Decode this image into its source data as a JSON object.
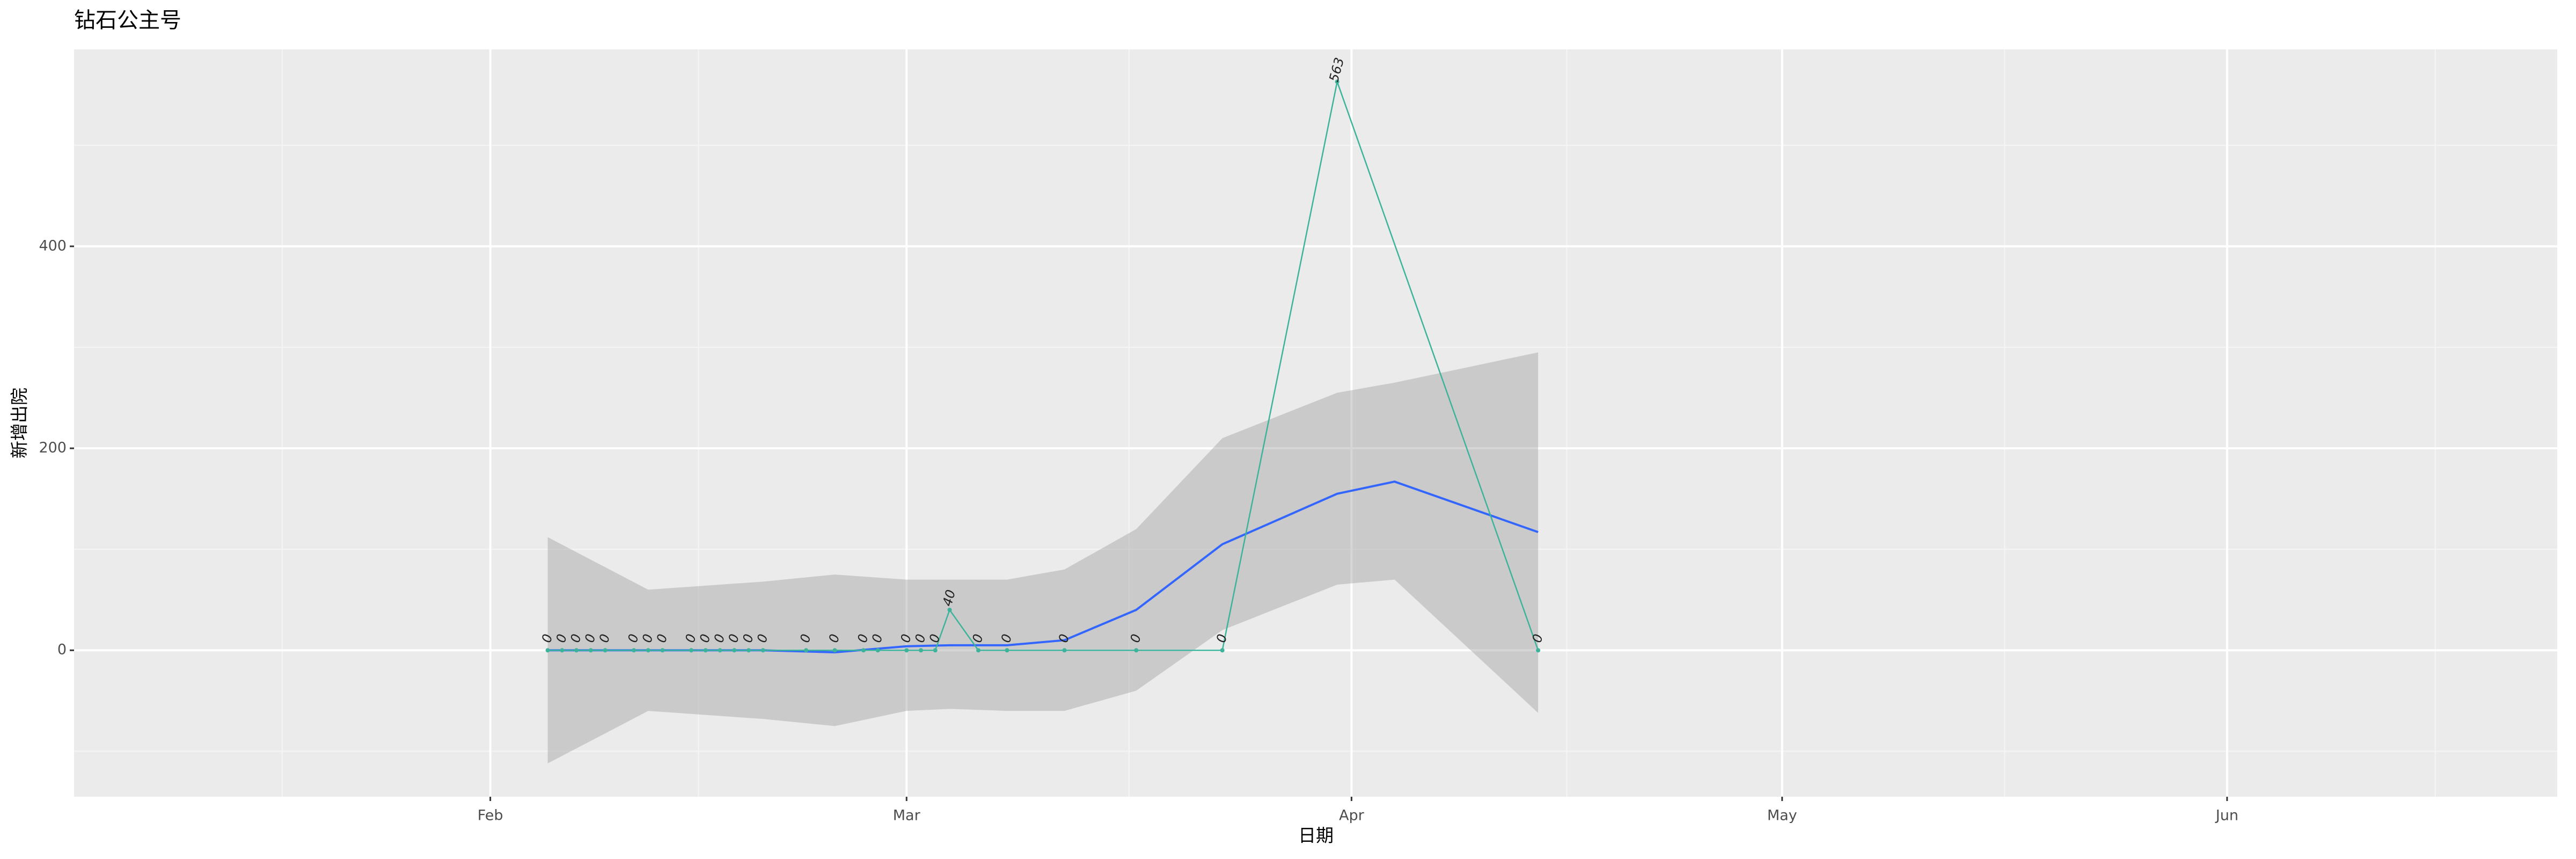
{
  "chart_data": {
    "type": "line",
    "title": "钻石公主号",
    "x_label": "日期",
    "y_label": "新增出院",
    "x": [
      "02-05",
      "02-06",
      "02-07",
      "02-08",
      "02-09",
      "02-11",
      "02-12",
      "02-13",
      "02-15",
      "02-16",
      "02-17",
      "02-18",
      "02-19",
      "02-20",
      "02-23",
      "02-25",
      "02-27",
      "02-28",
      "03-01",
      "03-02",
      "03-03",
      "03-04",
      "03-06",
      "03-08",
      "03-12",
      "03-17",
      "03-23",
      "03-31",
      "04-14"
    ],
    "series": [
      {
        "color": "#3cb39a",
        "values": [
          0,
          0,
          0,
          0,
          0,
          0,
          0,
          0,
          0,
          0,
          0,
          0,
          0,
          0,
          0,
          0,
          0,
          0,
          0,
          0,
          0,
          40,
          0,
          0,
          0,
          0,
          0,
          563,
          0
        ]
      }
    ],
    "smooth": {
      "color": "#3366ff",
      "band_color": "#999999",
      "x": [
        "02-05",
        "02-12",
        "02-20",
        "02-25",
        "03-01",
        "03-04",
        "03-08",
        "03-12",
        "03-17",
        "03-23",
        "03-31",
        "04-04",
        "04-14"
      ],
      "values": [
        0,
        0,
        0,
        -2,
        4,
        5,
        5,
        10,
        40,
        105,
        155,
        167,
        117
      ],
      "lower": [
        -112,
        -60,
        -68,
        -75,
        -60,
        -58,
        -60,
        -60,
        -40,
        20,
        65,
        70,
        -62
      ],
      "upper": [
        112,
        60,
        68,
        75,
        70,
        70,
        70,
        80,
        120,
        210,
        255,
        265,
        295
      ]
    },
    "xlim": [
      "01-03",
      "06-24"
    ],
    "xticks": [
      {
        "value": "02-01",
        "label": "Feb"
      },
      {
        "value": "03-01",
        "label": "Mar"
      },
      {
        "value": "04-01",
        "label": "Apr"
      },
      {
        "value": "05-01",
        "label": "May"
      },
      {
        "value": "06-01",
        "label": "Jun"
      }
    ],
    "ylim": [
      -145,
      595
    ],
    "yticks": [
      0,
      200,
      400
    ],
    "grid": true
  }
}
